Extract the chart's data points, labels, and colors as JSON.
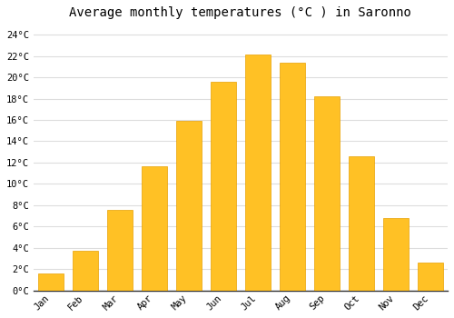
{
  "title": "Average monthly temperatures (°C ) in Saronno",
  "months": [
    "Jan",
    "Feb",
    "Mar",
    "Apr",
    "May",
    "Jun",
    "Jul",
    "Aug",
    "Sep",
    "Oct",
    "Nov",
    "Dec"
  ],
  "temperatures": [
    1.6,
    3.7,
    7.6,
    11.7,
    15.9,
    19.6,
    22.1,
    21.4,
    18.2,
    12.6,
    6.8,
    2.6
  ],
  "bar_color": "#FFC125",
  "bar_edge_color": "#E8A000",
  "background_color": "#FFFFFF",
  "grid_color": "#DDDDDD",
  "ylim": [
    0,
    25
  ],
  "yticks": [
    0,
    2,
    4,
    6,
    8,
    10,
    12,
    14,
    16,
    18,
    20,
    22,
    24
  ],
  "ylabel_suffix": "°C",
  "title_fontsize": 10,
  "tick_fontsize": 7.5,
  "font_family": "monospace"
}
